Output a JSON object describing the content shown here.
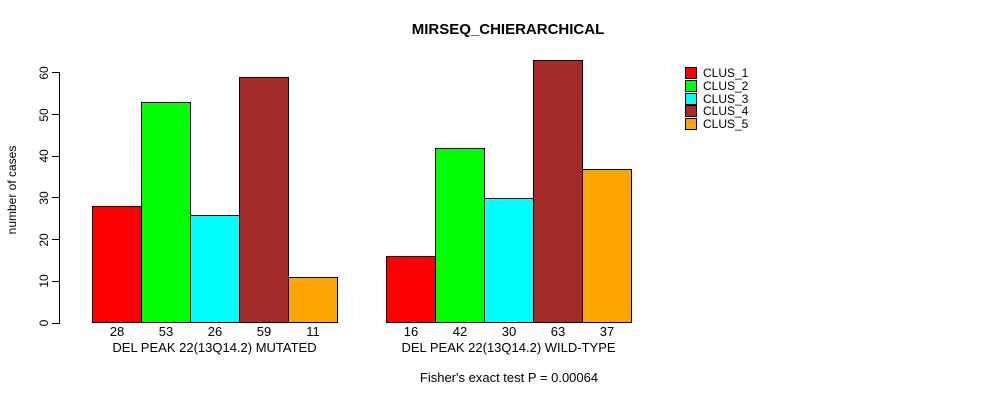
{
  "chart_data": {
    "type": "bar",
    "title": "MIRSEQ_CHIERARCHICAL",
    "ylabel": "number of cases",
    "ylim": [
      0,
      65
    ],
    "yticks": [
      0,
      10,
      20,
      30,
      40,
      50,
      60
    ],
    "grid": false,
    "legend_position": "right",
    "background": "#ffffff",
    "categories": [
      "DEL PEAK 22(13Q14.2) MUTATED",
      "DEL PEAK 22(13Q14.2) WILD-TYPE"
    ],
    "series": [
      {
        "name": "CLUS_1",
        "color": "#ff0000",
        "values": [
          28,
          16
        ]
      },
      {
        "name": "CLUS_2",
        "color": "#00ff00",
        "values": [
          53,
          42
        ]
      },
      {
        "name": "CLUS_3",
        "color": "#00ffff",
        "values": [
          26,
          30
        ]
      },
      {
        "name": "CLUS_4",
        "color": "#a52a2a",
        "values": [
          59,
          63
        ]
      },
      {
        "name": "CLUS_5",
        "color": "#ffa500",
        "values": [
          11,
          37
        ]
      }
    ],
    "bar_value_labels": [
      [
        28,
        53,
        26,
        59,
        11
      ],
      [
        16,
        42,
        30,
        63,
        37
      ]
    ],
    "annotation": "Fisher's exact test P = 0.00064"
  }
}
